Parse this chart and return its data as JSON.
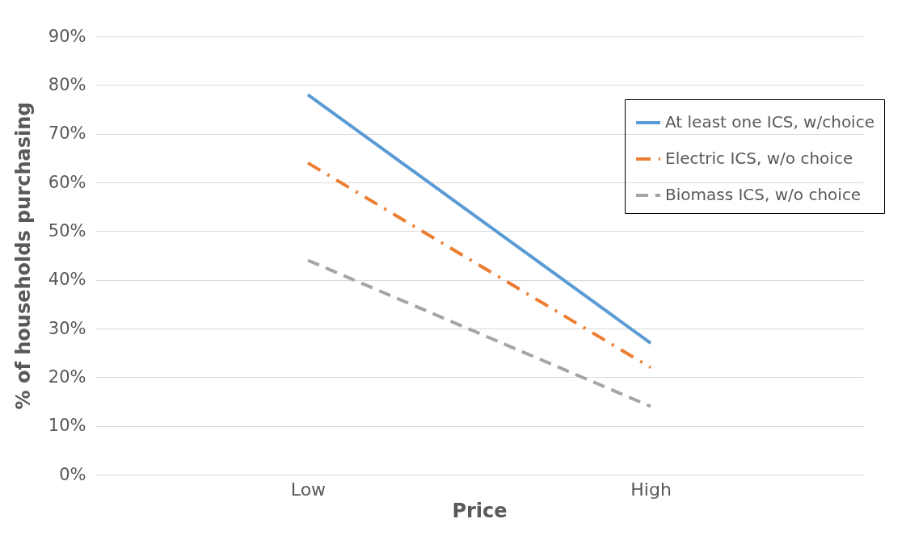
{
  "chart_data": {
    "type": "line",
    "xlabel": "Price",
    "ylabel": "% of households purchasing",
    "categories": [
      "Low",
      "High"
    ],
    "ylim": [
      0,
      90
    ],
    "yticks": [
      {
        "value": 0,
        "label": "0%"
      },
      {
        "value": 10,
        "label": "10%"
      },
      {
        "value": 20,
        "label": "20%"
      },
      {
        "value": 30,
        "label": "30%"
      },
      {
        "value": 40,
        "label": "40%"
      },
      {
        "value": 50,
        "label": "50%"
      },
      {
        "value": 60,
        "label": "60%"
      },
      {
        "value": 70,
        "label": "70%"
      },
      {
        "value": 80,
        "label": "80%"
      },
      {
        "value": 90,
        "label": "90%"
      }
    ],
    "grid": "y",
    "legend": "top right",
    "marker": "none",
    "series": [
      {
        "name": "At least one ICS, w/choice",
        "color": "#5b9bd5",
        "line_style": "solid",
        "values": [
          78,
          27
        ]
      },
      {
        "name": "Electric ICS, w/o choice",
        "color": "#ed7d31",
        "line_style": "dashdot",
        "values": [
          64,
          22
        ]
      },
      {
        "name": "Biomass ICS, w/o choice",
        "color": "#a5a5a5",
        "line_style": "dashed",
        "values": [
          44,
          14
        ]
      }
    ]
  }
}
